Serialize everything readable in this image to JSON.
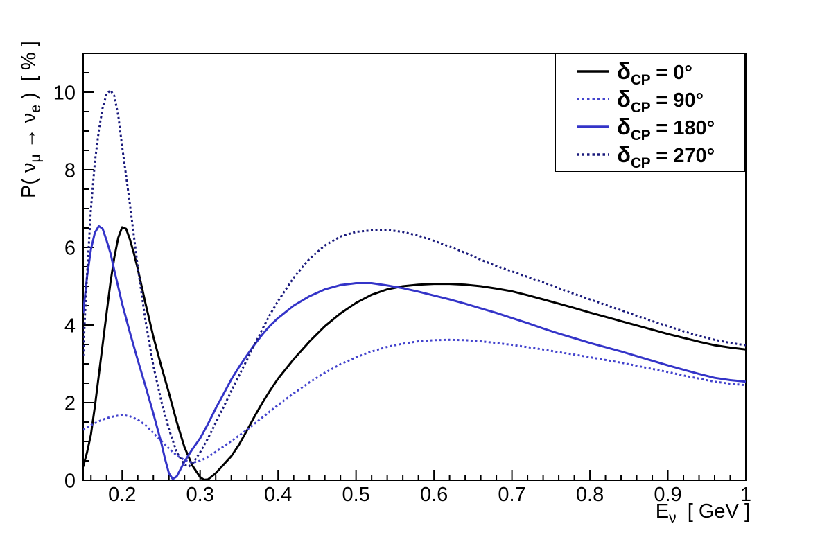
{
  "figure": {
    "background": "#ffffff",
    "frame_color": "#000000"
  },
  "axes": {
    "x": {
      "title_main": "E",
      "title_sub": "ν",
      "title_unit": "  [ GeV ]",
      "min": 0.15,
      "max": 1.0,
      "major_ticks": [
        0.2,
        0.3,
        0.4,
        0.5,
        0.6,
        0.7,
        0.8,
        0.9,
        1.0
      ],
      "tick_labels": [
        "0.2",
        "0.3",
        "0.4",
        "0.5",
        "0.6",
        "0.7",
        "0.8",
        "0.9",
        "1"
      ],
      "minor_step": 0.02
    },
    "y": {
      "title_prefix": "P( ",
      "title_nu1": "ν",
      "title_sub1": "μ",
      "title_arrow": " → ",
      "title_nu2": "ν",
      "title_sub2": "e",
      "title_suffix": " )  [ % ]",
      "min": 0,
      "max": 11,
      "major_ticks": [
        0,
        2,
        4,
        6,
        8,
        10
      ],
      "tick_labels": [
        "0",
        "2",
        "4",
        "6",
        "8",
        "10"
      ],
      "minor_step": 0.5
    }
  },
  "legend": {
    "position": "top-right",
    "entries": [
      {
        "delta": "δ",
        "sub": "CP",
        "eq": " = ",
        "value": "0°",
        "label": "δ_CP = 0°",
        "color": "#000000",
        "style": "solid"
      },
      {
        "delta": "δ",
        "sub": "CP",
        "eq": " = ",
        "value": "90°",
        "label": "δ_CP = 90°",
        "color": "#4343cd",
        "style": "dotted"
      },
      {
        "delta": "δ",
        "sub": "CP",
        "eq": " = ",
        "value": "180°",
        "label": "δ_CP = 180°",
        "color": "#3434c8",
        "style": "solid"
      },
      {
        "delta": "δ",
        "sub": "CP",
        "eq": " = ",
        "value": "270°",
        "label": "δ_CP = 270°",
        "color": "#1a1a7c",
        "style": "dotted"
      }
    ]
  },
  "chart_data": {
    "type": "line",
    "title": "",
    "xlabel": "E_ν [ GeV ]",
    "ylabel": "P( ν_μ → ν_e ) [ % ]",
    "xlim": [
      0.15,
      1.0
    ],
    "ylim": [
      0,
      11
    ],
    "grid": false,
    "legend_position": "top-right",
    "series": [
      {
        "id": "delta-cp-0",
        "name": "δ_CP = 0°",
        "color": "#000000",
        "line_style": "solid",
        "line_width": 3,
        "points": [
          [
            0.15,
            0.35
          ],
          [
            0.155,
            0.72
          ],
          [
            0.16,
            1.18
          ],
          [
            0.165,
            1.9
          ],
          [
            0.17,
            2.7
          ],
          [
            0.175,
            3.5
          ],
          [
            0.18,
            4.3
          ],
          [
            0.185,
            5.1
          ],
          [
            0.19,
            5.75
          ],
          [
            0.195,
            6.25
          ],
          [
            0.2,
            6.52
          ],
          [
            0.205,
            6.48
          ],
          [
            0.21,
            6.2
          ],
          [
            0.215,
            5.85
          ],
          [
            0.22,
            5.45
          ],
          [
            0.23,
            4.55
          ],
          [
            0.24,
            3.7
          ],
          [
            0.25,
            2.95
          ],
          [
            0.26,
            2.25
          ],
          [
            0.27,
            1.5
          ],
          [
            0.28,
            0.85
          ],
          [
            0.29,
            0.38
          ],
          [
            0.3,
            0.08
          ],
          [
            0.305,
            0.01
          ],
          [
            0.31,
            0.02
          ],
          [
            0.32,
            0.18
          ],
          [
            0.33,
            0.4
          ],
          [
            0.34,
            0.62
          ],
          [
            0.35,
            0.92
          ],
          [
            0.36,
            1.28
          ],
          [
            0.37,
            1.65
          ],
          [
            0.38,
            2.0
          ],
          [
            0.39,
            2.32
          ],
          [
            0.4,
            2.62
          ],
          [
            0.42,
            3.12
          ],
          [
            0.44,
            3.57
          ],
          [
            0.46,
            3.97
          ],
          [
            0.48,
            4.3
          ],
          [
            0.5,
            4.57
          ],
          [
            0.52,
            4.78
          ],
          [
            0.54,
            4.92
          ],
          [
            0.56,
            5.0
          ],
          [
            0.58,
            5.04
          ],
          [
            0.6,
            5.06
          ],
          [
            0.62,
            5.06
          ],
          [
            0.64,
            5.04
          ],
          [
            0.66,
            5.0
          ],
          [
            0.68,
            4.94
          ],
          [
            0.7,
            4.87
          ],
          [
            0.72,
            4.77
          ],
          [
            0.74,
            4.66
          ],
          [
            0.76,
            4.55
          ],
          [
            0.78,
            4.44
          ],
          [
            0.8,
            4.32
          ],
          [
            0.82,
            4.21
          ],
          [
            0.84,
            4.1
          ],
          [
            0.86,
            3.99
          ],
          [
            0.88,
            3.88
          ],
          [
            0.9,
            3.77
          ],
          [
            0.92,
            3.67
          ],
          [
            0.94,
            3.57
          ],
          [
            0.96,
            3.48
          ],
          [
            0.98,
            3.42
          ],
          [
            1.0,
            3.37
          ]
        ]
      },
      {
        "id": "delta-cp-90",
        "name": "δ_CP = 90°",
        "color": "#4343cd",
        "line_style": "dotted",
        "line_width": 3,
        "points": [
          [
            0.15,
            1.3
          ],
          [
            0.16,
            1.42
          ],
          [
            0.17,
            1.52
          ],
          [
            0.18,
            1.6
          ],
          [
            0.19,
            1.65
          ],
          [
            0.2,
            1.68
          ],
          [
            0.21,
            1.65
          ],
          [
            0.22,
            1.56
          ],
          [
            0.23,
            1.42
          ],
          [
            0.24,
            1.22
          ],
          [
            0.25,
            1.02
          ],
          [
            0.26,
            0.82
          ],
          [
            0.27,
            0.64
          ],
          [
            0.28,
            0.52
          ],
          [
            0.29,
            0.45
          ],
          [
            0.3,
            0.5
          ],
          [
            0.31,
            0.6
          ],
          [
            0.32,
            0.73
          ],
          [
            0.33,
            0.87
          ],
          [
            0.34,
            1.01
          ],
          [
            0.35,
            1.15
          ],
          [
            0.36,
            1.3
          ],
          [
            0.37,
            1.46
          ],
          [
            0.38,
            1.62
          ],
          [
            0.39,
            1.78
          ],
          [
            0.4,
            1.94
          ],
          [
            0.42,
            2.24
          ],
          [
            0.44,
            2.52
          ],
          [
            0.46,
            2.77
          ],
          [
            0.48,
            2.99
          ],
          [
            0.5,
            3.17
          ],
          [
            0.52,
            3.32
          ],
          [
            0.54,
            3.44
          ],
          [
            0.56,
            3.52
          ],
          [
            0.58,
            3.58
          ],
          [
            0.6,
            3.61
          ],
          [
            0.62,
            3.62
          ],
          [
            0.64,
            3.61
          ],
          [
            0.66,
            3.58
          ],
          [
            0.68,
            3.54
          ],
          [
            0.7,
            3.49
          ],
          [
            0.72,
            3.43
          ],
          [
            0.74,
            3.37
          ],
          [
            0.76,
            3.3
          ],
          [
            0.78,
            3.24
          ],
          [
            0.8,
            3.17
          ],
          [
            0.82,
            3.1
          ],
          [
            0.84,
            3.03
          ],
          [
            0.86,
            2.95
          ],
          [
            0.88,
            2.87
          ],
          [
            0.9,
            2.79
          ],
          [
            0.92,
            2.7
          ],
          [
            0.94,
            2.62
          ],
          [
            0.96,
            2.54
          ],
          [
            0.98,
            2.49
          ],
          [
            1.0,
            2.45
          ]
        ]
      },
      {
        "id": "delta-cp-180",
        "name": "δ_CP = 180°",
        "color": "#3434c8",
        "line_style": "solid",
        "line_width": 3,
        "points": [
          [
            0.15,
            4.3
          ],
          [
            0.155,
            5.25
          ],
          [
            0.16,
            5.95
          ],
          [
            0.165,
            6.38
          ],
          [
            0.17,
            6.55
          ],
          [
            0.175,
            6.48
          ],
          [
            0.18,
            6.18
          ],
          [
            0.185,
            5.85
          ],
          [
            0.19,
            5.4
          ],
          [
            0.195,
            4.98
          ],
          [
            0.2,
            4.55
          ],
          [
            0.21,
            3.8
          ],
          [
            0.22,
            3.1
          ],
          [
            0.23,
            2.42
          ],
          [
            0.24,
            1.72
          ],
          [
            0.25,
            0.98
          ],
          [
            0.255,
            0.55
          ],
          [
            0.26,
            0.18
          ],
          [
            0.265,
            0.03
          ],
          [
            0.27,
            0.1
          ],
          [
            0.28,
            0.48
          ],
          [
            0.29,
            0.8
          ],
          [
            0.3,
            1.08
          ],
          [
            0.31,
            1.45
          ],
          [
            0.32,
            1.85
          ],
          [
            0.33,
            2.22
          ],
          [
            0.34,
            2.6
          ],
          [
            0.35,
            2.92
          ],
          [
            0.36,
            3.22
          ],
          [
            0.37,
            3.5
          ],
          [
            0.38,
            3.76
          ],
          [
            0.39,
            3.99
          ],
          [
            0.4,
            4.18
          ],
          [
            0.42,
            4.5
          ],
          [
            0.44,
            4.74
          ],
          [
            0.46,
            4.92
          ],
          [
            0.48,
            5.03
          ],
          [
            0.5,
            5.08
          ],
          [
            0.52,
            5.08
          ],
          [
            0.54,
            5.02
          ],
          [
            0.56,
            4.95
          ],
          [
            0.58,
            4.86
          ],
          [
            0.6,
            4.76
          ],
          [
            0.62,
            4.66
          ],
          [
            0.64,
            4.55
          ],
          [
            0.66,
            4.43
          ],
          [
            0.68,
            4.31
          ],
          [
            0.7,
            4.18
          ],
          [
            0.72,
            4.05
          ],
          [
            0.74,
            3.91
          ],
          [
            0.76,
            3.78
          ],
          [
            0.78,
            3.66
          ],
          [
            0.8,
            3.54
          ],
          [
            0.82,
            3.43
          ],
          [
            0.84,
            3.32
          ],
          [
            0.86,
            3.2
          ],
          [
            0.88,
            3.08
          ],
          [
            0.9,
            2.96
          ],
          [
            0.92,
            2.85
          ],
          [
            0.94,
            2.74
          ],
          [
            0.96,
            2.64
          ],
          [
            0.98,
            2.58
          ],
          [
            1.0,
            2.54
          ]
        ]
      },
      {
        "id": "delta-cp-270",
        "name": "δ_CP = 270°",
        "color": "#1a1a7c",
        "line_style": "dotted",
        "line_width": 3,
        "points": [
          [
            0.15,
            3.2
          ],
          [
            0.1525,
            4.3
          ],
          [
            0.155,
            5.3
          ],
          [
            0.16,
            7.0
          ],
          [
            0.165,
            8.2
          ],
          [
            0.17,
            9.0
          ],
          [
            0.175,
            9.6
          ],
          [
            0.18,
            9.95
          ],
          [
            0.185,
            10.05
          ],
          [
            0.19,
            9.9
          ],
          [
            0.195,
            9.4
          ],
          [
            0.2,
            8.6
          ],
          [
            0.205,
            7.85
          ],
          [
            0.21,
            7.1
          ],
          [
            0.215,
            6.3
          ],
          [
            0.22,
            5.5
          ],
          [
            0.23,
            4.1
          ],
          [
            0.24,
            2.95
          ],
          [
            0.25,
            2.05
          ],
          [
            0.26,
            1.32
          ],
          [
            0.27,
            0.72
          ],
          [
            0.28,
            0.4
          ],
          [
            0.285,
            0.35
          ],
          [
            0.29,
            0.42
          ],
          [
            0.3,
            0.72
          ],
          [
            0.31,
            1.08
          ],
          [
            0.32,
            1.48
          ],
          [
            0.33,
            1.88
          ],
          [
            0.34,
            2.3
          ],
          [
            0.35,
            2.7
          ],
          [
            0.36,
            3.1
          ],
          [
            0.37,
            3.5
          ],
          [
            0.38,
            3.9
          ],
          [
            0.39,
            4.28
          ],
          [
            0.4,
            4.62
          ],
          [
            0.42,
            5.22
          ],
          [
            0.44,
            5.7
          ],
          [
            0.46,
            6.05
          ],
          [
            0.48,
            6.28
          ],
          [
            0.5,
            6.4
          ],
          [
            0.52,
            6.44
          ],
          [
            0.54,
            6.45
          ],
          [
            0.56,
            6.4
          ],
          [
            0.58,
            6.3
          ],
          [
            0.6,
            6.17
          ],
          [
            0.62,
            6.02
          ],
          [
            0.64,
            5.86
          ],
          [
            0.66,
            5.68
          ],
          [
            0.68,
            5.52
          ],
          [
            0.7,
            5.38
          ],
          [
            0.72,
            5.24
          ],
          [
            0.74,
            5.1
          ],
          [
            0.76,
            4.95
          ],
          [
            0.78,
            4.8
          ],
          [
            0.8,
            4.66
          ],
          [
            0.82,
            4.52
          ],
          [
            0.84,
            4.38
          ],
          [
            0.86,
            4.24
          ],
          [
            0.88,
            4.1
          ],
          [
            0.9,
            3.97
          ],
          [
            0.92,
            3.84
          ],
          [
            0.94,
            3.72
          ],
          [
            0.96,
            3.62
          ],
          [
            0.98,
            3.54
          ],
          [
            1.0,
            3.48
          ]
        ]
      }
    ]
  }
}
